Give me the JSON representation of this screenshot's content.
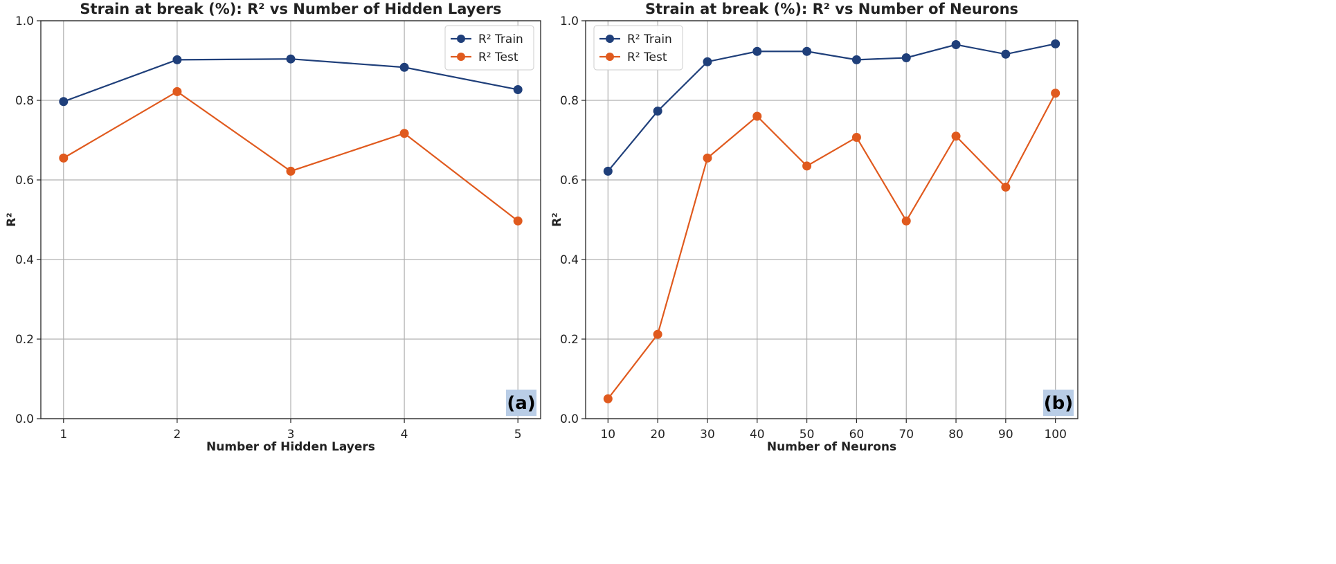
{
  "chart_data": [
    {
      "type": "line",
      "title": "Strain at break (%): R² vs Number of Hidden Layers",
      "xlabel": "Number of Hidden Layers",
      "ylabel": "R²",
      "x": [
        1,
        2,
        3,
        4,
        5
      ],
      "x_tick_labels": [
        "1",
        "2",
        "3",
        "4",
        "5"
      ],
      "xlim": [
        0.8,
        5.2
      ],
      "ylim": [
        0.0,
        1.0
      ],
      "y_ticks": [
        0.0,
        0.2,
        0.4,
        0.6,
        0.8,
        1.0
      ],
      "y_tick_labels": [
        "0.0",
        "0.2",
        "0.4",
        "0.6",
        "0.8",
        "1.0"
      ],
      "grid": true,
      "legend_position": "top-right",
      "series": [
        {
          "name": "R² Train",
          "color": "#1f3f7a",
          "values": [
            0.797,
            0.902,
            0.904,
            0.883,
            0.827
          ]
        },
        {
          "name": "R² Test",
          "color": "#e05a1e",
          "values": [
            0.655,
            0.822,
            0.622,
            0.717,
            0.497
          ]
        }
      ],
      "panel_label": "(a)"
    },
    {
      "type": "line",
      "title": "Strain at break (%): R² vs Number of Neurons",
      "xlabel": "Number of Neurons",
      "ylabel": "R²",
      "x": [
        10,
        20,
        30,
        40,
        50,
        60,
        70,
        80,
        90,
        100
      ],
      "x_tick_labels": [
        "10",
        "20",
        "30",
        "40",
        "50",
        "60",
        "70",
        "80",
        "90",
        "100"
      ],
      "xlim": [
        5.5,
        104.5
      ],
      "ylim": [
        0.0,
        1.0
      ],
      "y_ticks": [
        0.0,
        0.2,
        0.4,
        0.6,
        0.8,
        1.0
      ],
      "y_tick_labels": [
        "0.0",
        "0.2",
        "0.4",
        "0.6",
        "0.8",
        "1.0"
      ],
      "grid": true,
      "legend_position": "top-left",
      "series": [
        {
          "name": "R² Train",
          "color": "#1f3f7a",
          "values": [
            0.622,
            0.773,
            0.897,
            0.923,
            0.923,
            0.902,
            0.907,
            0.94,
            0.916,
            0.942
          ]
        },
        {
          "name": "R² Test",
          "color": "#e05a1e",
          "values": [
            0.05,
            0.212,
            0.655,
            0.76,
            0.635,
            0.707,
            0.497,
            0.71,
            0.582,
            0.818
          ]
        }
      ],
      "panel_label": "(b)"
    }
  ]
}
